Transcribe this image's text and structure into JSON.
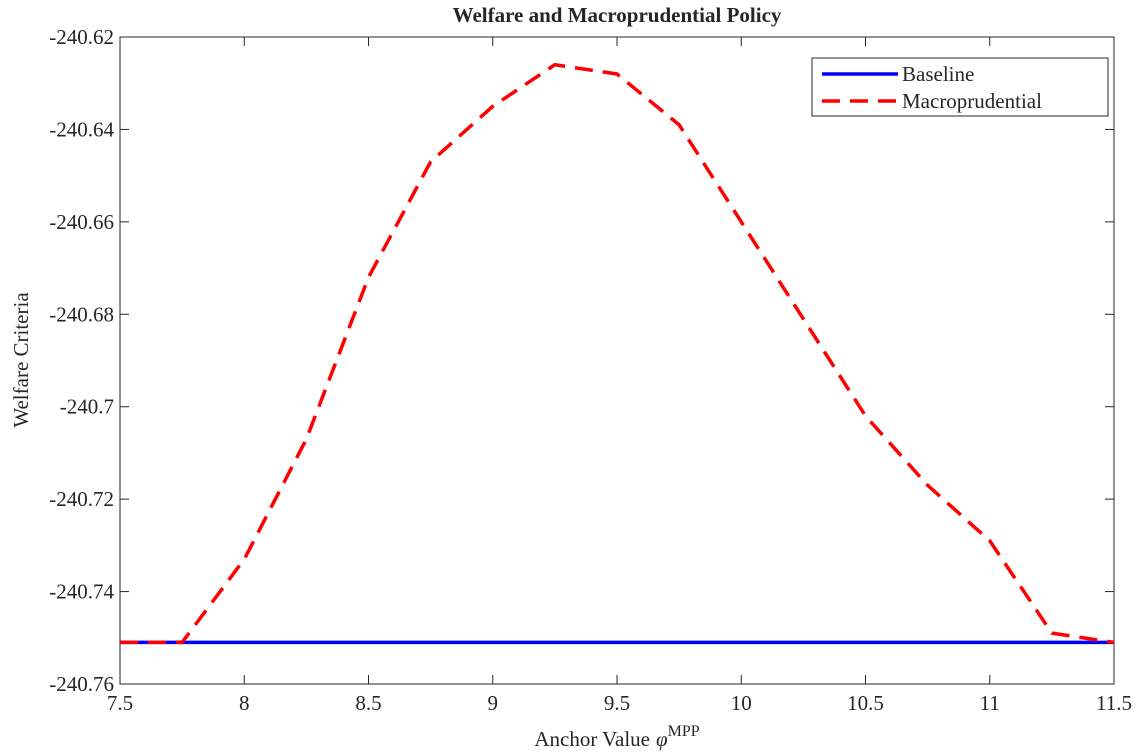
{
  "chart_data": {
    "type": "line",
    "title": "Welfare and Macroprudential Policy",
    "xlabel": {
      "text": "Anchor Value",
      "symbol": "φ",
      "superscript": "MPP"
    },
    "ylabel": "Welfare Criteria",
    "x": [
      7.5,
      7.75,
      8,
      8.25,
      8.5,
      8.75,
      9,
      9.25,
      9.5,
      9.75,
      10,
      10.25,
      10.5,
      10.75,
      11,
      11.25,
      11.5
    ],
    "series": [
      {
        "name": "Baseline",
        "color": "#0000ff",
        "dash": false,
        "values": [
          -240.751,
          -240.751,
          -240.751,
          -240.751,
          -240.751,
          -240.751,
          -240.751,
          -240.751,
          -240.751,
          -240.751,
          -240.751,
          -240.751,
          -240.751,
          -240.751,
          -240.751,
          -240.751,
          -240.751
        ]
      },
      {
        "name": "Macroprudential",
        "color": "#ff0000",
        "dash": true,
        "values": [
          -240.751,
          -240.751,
          -240.733,
          -240.707,
          -240.672,
          -240.647,
          -240.635,
          -240.626,
          -240.628,
          -240.639,
          -240.66,
          -240.681,
          -240.702,
          -240.717,
          -240.729,
          -240.749,
          -240.751
        ]
      }
    ],
    "xlim": [
      7.5,
      11.5
    ],
    "xticks": [
      7.5,
      8,
      8.5,
      9,
      9.5,
      10,
      10.5,
      11,
      11.5
    ],
    "ylim": [
      -240.76,
      -240.62
    ],
    "yticks": [
      -240.76,
      -240.74,
      -240.72,
      -240.7,
      -240.68,
      -240.66,
      -240.64,
      -240.62
    ],
    "grid": false,
    "legend": "upper right"
  }
}
